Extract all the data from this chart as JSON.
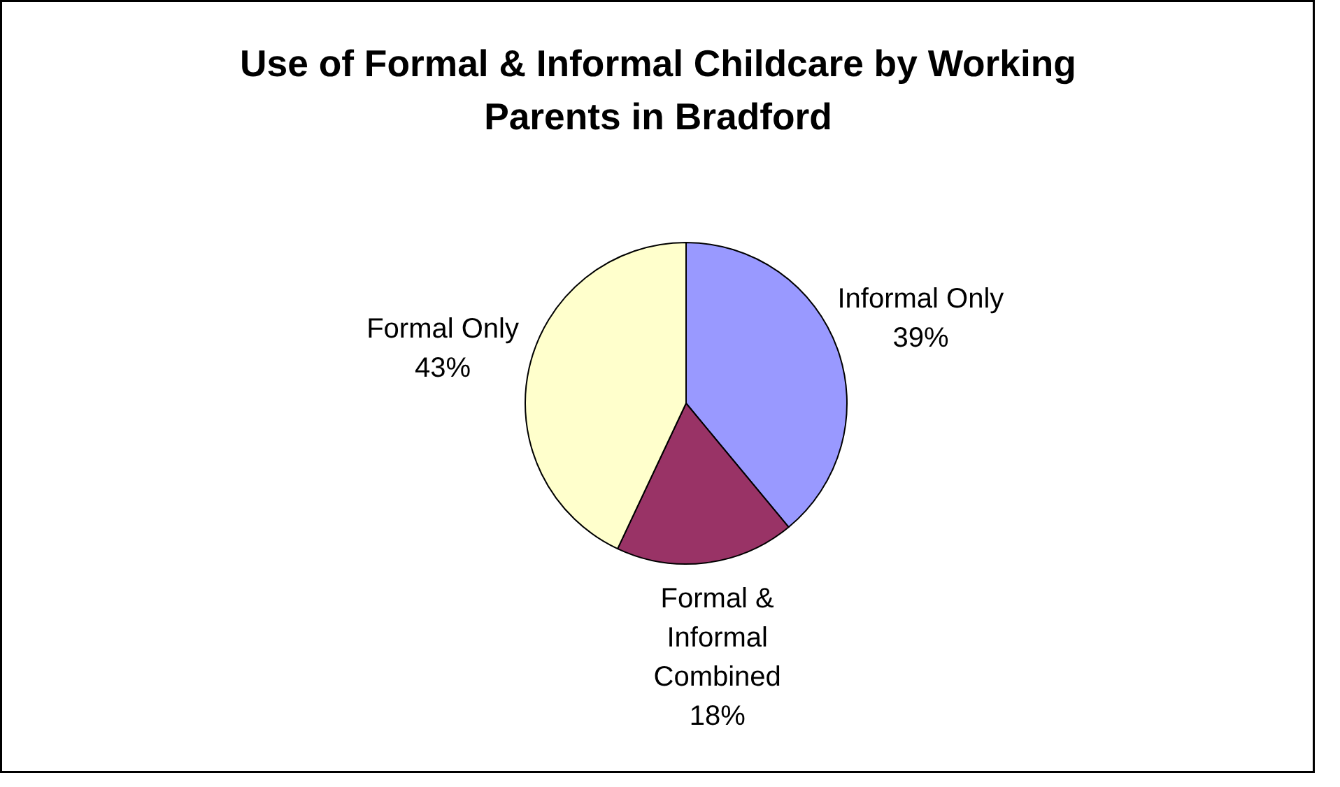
{
  "chart_data": {
    "type": "pie",
    "title": "Use of Formal & Informal Childcare by Working Parents in Bradford",
    "categories": [
      "Informal Only",
      "Formal & Informal Combined",
      "Formal Only"
    ],
    "values": [
      39,
      18,
      43
    ],
    "colors": [
      "#9999ff",
      "#993366",
      "#ffffcc"
    ],
    "value_labels": [
      "39%",
      "18%",
      "43%"
    ]
  }
}
